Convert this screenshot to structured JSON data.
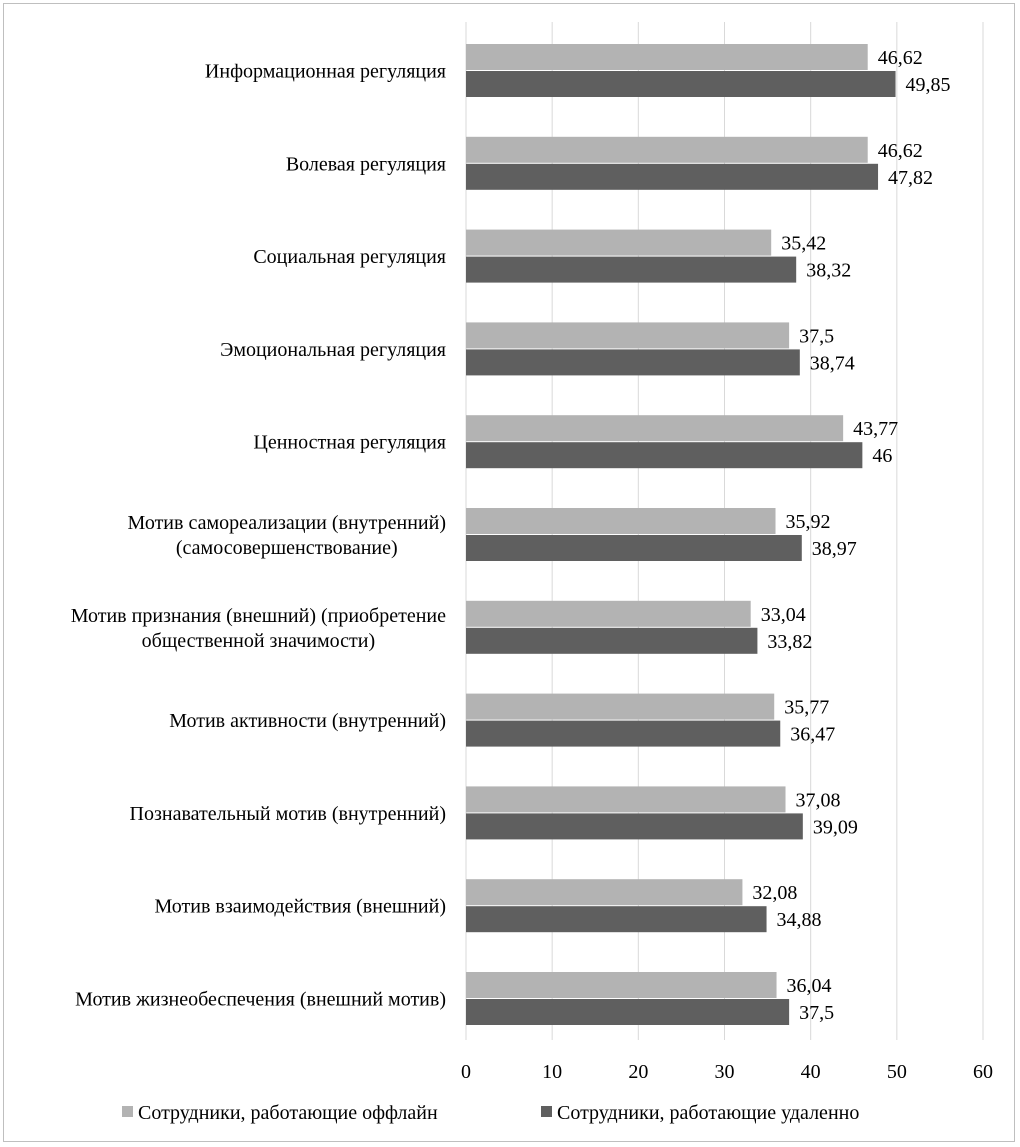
{
  "chart_data": {
    "type": "bar",
    "orientation": "horizontal",
    "categories": [
      [
        "Информационная регуляция"
      ],
      [
        "Волевая регуляция"
      ],
      [
        "Социальная регуляция"
      ],
      [
        "Эмоциональная регуляция"
      ],
      [
        "Ценностная регуляция"
      ],
      [
        "Мотив самореализации (внутренний)",
        "(самосовершенствование)"
      ],
      [
        "Мотив признания (внешний) (приобретение",
        "общественной значимости)"
      ],
      [
        "Мотив активности (внутренний)"
      ],
      [
        "Познавательный мотив (внутренний)"
      ],
      [
        "Мотив взаимодействия (внешний)"
      ],
      [
        "Мотив жизнеобеспечения (внешний мотив)"
      ]
    ],
    "series": [
      {
        "name": "Сотрудники, работающие оффлайн",
        "color": "#b3b3b3",
        "values": [
          46.62,
          46.62,
          35.42,
          37.5,
          43.77,
          35.92,
          33.04,
          35.77,
          37.08,
          32.08,
          36.04
        ],
        "labels": [
          "46,62",
          "46,62",
          "35,42",
          "37,5",
          "43,77",
          "35,92",
          "33,04",
          "35,77",
          "37,08",
          "32,08",
          "36,04"
        ]
      },
      {
        "name": "Сотрудники, работающие удаленно",
        "color": "#5f5f5f",
        "values": [
          49.85,
          47.82,
          38.32,
          38.74,
          46,
          38.97,
          33.82,
          36.47,
          39.09,
          34.88,
          37.5
        ],
        "labels": [
          "49,85",
          "47,82",
          "38,32",
          "38,74",
          "46",
          "38,97",
          "33,82",
          "36,47",
          "39,09",
          "34,88",
          "37,5"
        ]
      }
    ],
    "xlim": [
      0,
      60
    ],
    "ticks": [
      0,
      10,
      20,
      30,
      40,
      50,
      60
    ],
    "tick_labels": [
      "0",
      "10",
      "20",
      "30",
      "40",
      "50",
      "60"
    ],
    "grid": true,
    "gridline_color": "#d9d9d9",
    "legend_position": "bottom",
    "title": "",
    "xlabel": "",
    "ylabel": ""
  }
}
